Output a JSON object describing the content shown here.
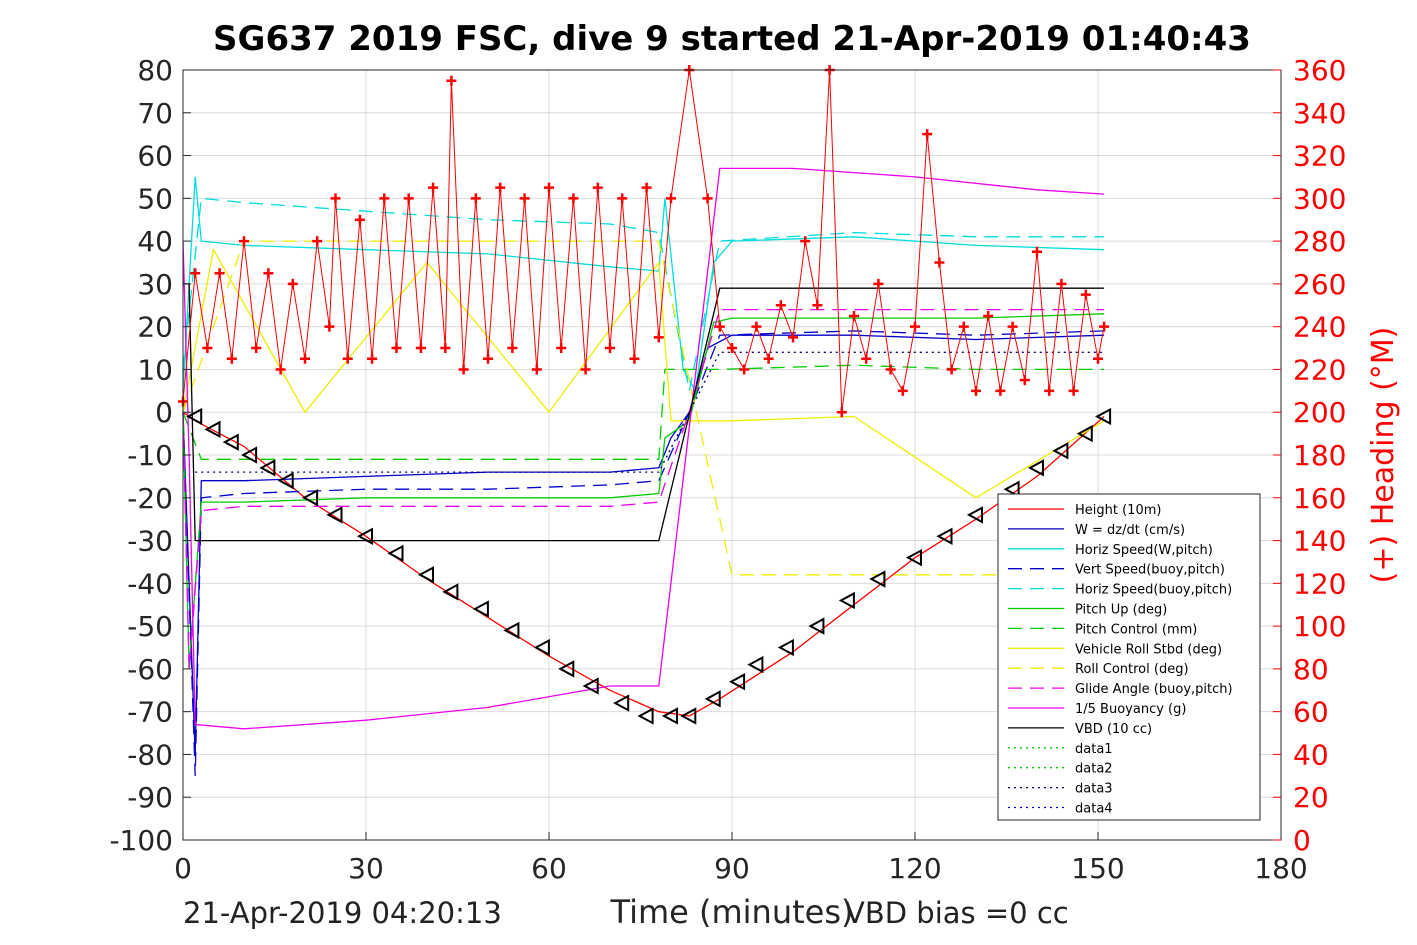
{
  "chart_data": {
    "type": "line",
    "title": "SG637 2019 FSC, dive 9 started 21-Apr-2019 01:40:43",
    "xlabel": "Time (minutes)",
    "ylabel": "",
    "ylabel_right": "(+) Heading (°M)",
    "xlim": [
      0,
      180
    ],
    "ylim": [
      -100,
      80
    ],
    "ylim_right": [
      0,
      360
    ],
    "x_ticks": [
      "0",
      "30",
      "60",
      "90",
      "120",
      "150",
      "180"
    ],
    "y_ticks": [
      "-100",
      "-90",
      "-80",
      "-70",
      "-60",
      "-50",
      "-40",
      "-30",
      "-20",
      "-10",
      "0",
      "10",
      "20",
      "30",
      "40",
      "50",
      "60",
      "70",
      "80"
    ],
    "y_ticks_right": [
      "0",
      "20",
      "40",
      "60",
      "80",
      "100",
      "120",
      "140",
      "160",
      "180",
      "200",
      "220",
      "240",
      "260",
      "280",
      "300",
      "320",
      "340",
      "360"
    ],
    "grid": true,
    "legend_position": "lower-right",
    "series": [
      {
        "name": "Height (10m)",
        "color": "#ff0000",
        "style": "solid",
        "x": [
          0,
          2,
          10,
          20,
          30,
          40,
          50,
          60,
          70,
          78,
          83,
          88,
          100,
          110,
          120,
          130,
          140,
          151
        ],
        "y": [
          0,
          -2,
          -8,
          -20,
          -29,
          -39,
          -48,
          -57,
          -65,
          -70,
          -71,
          -67,
          -56,
          -45,
          -34,
          -25,
          -15,
          -1
        ]
      },
      {
        "name": "W = dz/dt (cm/s)",
        "color": "#0000cc",
        "style": "solid",
        "x": [
          0,
          1,
          2,
          3,
          10,
          30,
          50,
          70,
          78,
          80,
          83,
          86,
          90,
          110,
          130,
          151
        ],
        "y": [
          0,
          -40,
          -80,
          -16,
          -16,
          -15,
          -14,
          -14,
          -13,
          -6,
          0,
          15,
          18,
          18,
          17,
          18
        ]
      },
      {
        "name": "Horiz Speed(W,pitch)",
        "color": "#00dddd",
        "style": "solid",
        "x": [
          0,
          2,
          3,
          10,
          30,
          50,
          70,
          78,
          79,
          82,
          84,
          87,
          90,
          110,
          130,
          151
        ],
        "y": [
          5,
          55,
          40,
          39,
          38,
          37,
          34,
          33,
          50,
          10,
          5,
          35,
          40,
          41,
          39,
          38
        ]
      },
      {
        "name": "Vert Speed(buoy,pitch)",
        "color": "#0000cc",
        "style": "dashed",
        "x": [
          0,
          2,
          3,
          10,
          30,
          50,
          70,
          78,
          83,
          88,
          110,
          130,
          151
        ],
        "y": [
          0,
          -85,
          -20,
          -19,
          -18,
          -18,
          -17,
          -16,
          0,
          18,
          19,
          18,
          19
        ]
      },
      {
        "name": "Horiz Speed(buoy,pitch)",
        "color": "#00dddd",
        "style": "dashed",
        "x": [
          0,
          3,
          10,
          30,
          50,
          70,
          78,
          83,
          88,
          110,
          130,
          151
        ],
        "y": [
          10,
          50,
          49,
          47,
          45,
          44,
          42,
          5,
          40,
          42,
          41,
          41
        ]
      },
      {
        "name": "Pitch Up (deg)",
        "color": "#00cc00",
        "style": "solid",
        "x": [
          0,
          1,
          3,
          10,
          30,
          50,
          70,
          78,
          79,
          83,
          87,
          90,
          110,
          130,
          151
        ],
        "y": [
          0,
          -60,
          -21,
          -21,
          -20,
          -20,
          -20,
          -19,
          -6,
          -2,
          21,
          22,
          22,
          22,
          23
        ]
      },
      {
        "name": "Pitch Control (mm)",
        "color": "#00cc00",
        "style": "dashed",
        "x": [
          0,
          3,
          10,
          30,
          50,
          70,
          78,
          79,
          88,
          110,
          130,
          151
        ],
        "y": [
          0,
          -11,
          -11,
          -11,
          -11,
          -11,
          -11,
          10,
          10,
          11,
          10,
          10
        ]
      },
      {
        "name": "Vehicle Roll Stbd (deg)",
        "color": "#eeee00",
        "style": "solid",
        "x": [
          0,
          5,
          20,
          40,
          60,
          78,
          80,
          90,
          110,
          130,
          151
        ],
        "y": [
          0,
          38,
          0,
          35,
          0,
          35,
          -2,
          -2,
          -1,
          -20,
          -2
        ]
      },
      {
        "name": "Roll Control (deg)",
        "color": "#eeee00",
        "style": "dashed",
        "x": [
          0,
          10,
          30,
          50,
          70,
          78,
          90,
          110,
          130,
          151
        ],
        "y": [
          0,
          40,
          40,
          40,
          40,
          40,
          -38,
          -38,
          -38,
          -38
        ]
      },
      {
        "name": "Glide Angle (buoy,pitch)",
        "color": "#ee00ee",
        "style": "dashed",
        "x": [
          0,
          1,
          3,
          10,
          30,
          50,
          70,
          78,
          83,
          88,
          110,
          130,
          151
        ],
        "y": [
          0,
          -60,
          -23,
          -22,
          -22,
          -22,
          -22,
          -21,
          0,
          24,
          24,
          24,
          24
        ]
      },
      {
        "name": "1/5 Buoyancy (g)",
        "color": "#ee00ee",
        "style": "solid",
        "x": [
          0,
          1,
          2,
          10,
          30,
          50,
          70,
          78,
          88,
          100,
          120,
          140,
          151
        ],
        "y": [
          40,
          -10,
          -73,
          -74,
          -72,
          -69,
          -64,
          -64,
          57,
          57,
          55,
          52,
          51
        ]
      },
      {
        "name": "VBD (10 cc)",
        "color": "#000000",
        "style": "solid",
        "x": [
          0,
          1,
          2,
          3,
          78,
          88,
          151
        ],
        "y": [
          30,
          30,
          -30,
          -30,
          -30,
          29,
          29
        ]
      },
      {
        "name": "data1",
        "color": "#00cc00",
        "style": "dotted",
        "x": [],
        "y": []
      },
      {
        "name": "data2",
        "color": "#00cc00",
        "style": "dotted",
        "x": [],
        "y": []
      },
      {
        "name": "data3",
        "color": "#000066",
        "style": "dotted",
        "x": [
          2,
          78,
          88,
          151
        ],
        "y": [
          -14,
          -14,
          14,
          14
        ]
      },
      {
        "name": "data4",
        "color": "#0000cc",
        "style": "dotted",
        "x": [],
        "y": []
      }
    ],
    "markers_series": {
      "name": "Depth markers",
      "color": "#000000",
      "x": [
        2,
        5,
        8,
        11,
        14,
        17,
        21,
        25,
        30,
        35,
        40,
        44,
        49,
        54,
        59,
        63,
        67,
        72,
        76,
        80,
        83,
        87,
        91,
        94,
        99,
        104,
        109,
        114,
        120,
        125,
        130,
        136,
        140,
        144,
        148,
        151
      ],
      "y": [
        -1,
        -4,
        -7,
        -10,
        -13,
        -16,
        -20,
        -24,
        -29,
        -33,
        -38,
        -42,
        -46,
        -51,
        -55,
        -60,
        -64,
        -68,
        -71,
        -71,
        -71,
        -67,
        -63,
        -59,
        -55,
        -50,
        -44,
        -39,
        -34,
        -29,
        -24,
        -18,
        -13,
        -9,
        -5,
        -1
      ]
    },
    "heading_series": {
      "name": "(+) Heading (°M)",
      "color": "#ff0000",
      "x": [
        0,
        2,
        4,
        6,
        8,
        10,
        12,
        14,
        16,
        18,
        20,
        22,
        24,
        25,
        27,
        29,
        31,
        33,
        35,
        37,
        39,
        41,
        43,
        44,
        46,
        48,
        50,
        52,
        54,
        56,
        58,
        60,
        62,
        64,
        66,
        68,
        70,
        72,
        74,
        76,
        78,
        80,
        83,
        86,
        88,
        90,
        92,
        94,
        96,
        98,
        100,
        102,
        104,
        106,
        108,
        110,
        112,
        114,
        116,
        118,
        120,
        122,
        124,
        126,
        128,
        130,
        132,
        134,
        136,
        138,
        140,
        142,
        144,
        146,
        148,
        150,
        151
      ],
      "y": [
        205,
        265,
        230,
        265,
        225,
        280,
        230,
        265,
        220,
        260,
        225,
        280,
        240,
        300,
        225,
        290,
        225,
        300,
        230,
        300,
        230,
        305,
        230,
        355,
        220,
        300,
        225,
        305,
        230,
        300,
        220,
        305,
        230,
        300,
        220,
        305,
        230,
        300,
        225,
        305,
        235,
        300,
        360,
        300,
        240,
        230,
        220,
        240,
        225,
        250,
        235,
        280,
        250,
        360,
        200,
        245,
        225,
        260,
        220,
        210,
        240,
        330,
        270,
        220,
        240,
        210,
        245,
        210,
        240,
        215,
        275,
        210,
        260,
        210,
        255,
        225,
        240
      ]
    }
  }
}
